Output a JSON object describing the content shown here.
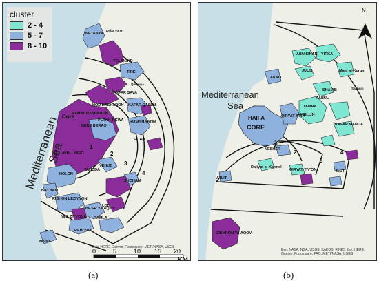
{
  "legend": {
    "title": "cluster",
    "items": [
      {
        "label": "2 - 4",
        "color": "#7fe6d2"
      },
      {
        "label": "5 - 7",
        "color": "#8fb1dd"
      },
      {
        "label": "8 - 10",
        "color": "#8a2d9a"
      }
    ]
  },
  "panel_a": {
    "sea": [
      "Mediterranean",
      "Sea"
    ],
    "ring_numbers": [
      "1",
      "2",
      "3",
      "4"
    ],
    "core_label": "Core",
    "places": [
      "NETANYA",
      "Kefar Yona",
      "TEL MOND",
      "TIRE",
      "Qalqiliya",
      "KFAR SAVA",
      "HOD HASHARON",
      "RAMAT HASHARON",
      "PETAH TIKWA",
      "BENE BERAQ",
      "KAFAR QASEM",
      "ROSH HAAYIN",
      "EL'AD",
      "TEL AVIV - YAFO",
      "YEHUD",
      "YAHUDA",
      "HOLON",
      "BAT YAM",
      "SHOHAM",
      "RISHON LEZIYYON",
      "BE'ER YA'AQOV",
      "LOD",
      "RAMLA",
      "NES ZIYYONA",
      "REHOVOT",
      "YAVNE"
    ],
    "scale_ticks": [
      "0",
      "5",
      "10",
      "15",
      "20"
    ],
    "scale_unit": "KM",
    "attribution": "Esri, HERE, Garmin, Foursquare, METI/NASA, USGS"
  },
  "panel_b": {
    "sea": [
      "Mediterranean",
      "Sea"
    ],
    "north": "N",
    "ring_numbers": [
      "1",
      "2",
      "3",
      "4"
    ],
    "places": [
      "AKKO",
      "ABU SINAN",
      "YIRKA",
      "JULIS",
      "Majd al-Kurum",
      "SHA'AB",
      "Sakhnin",
      "KABUL",
      "TAMRA",
      "I'BILLIN",
      "KAFAR MANDA",
      "HAIFA",
      "CORE",
      "QIRYAT ATTA",
      "NESHER",
      "QIRYAT TIV'ON",
      "ILUT",
      "Daliyat al-Karmel",
      "ATLIT",
      "ZIKHRON YA'AQOV"
    ],
    "attribution": "Esri, NASA, NGA, USGS, KADDB, RJGC, Esri, HERE, Garmin, Foursquare, FAO, METI/NASA, USGS"
  },
  "captions": [
    "(a)",
    "(b)"
  ]
}
